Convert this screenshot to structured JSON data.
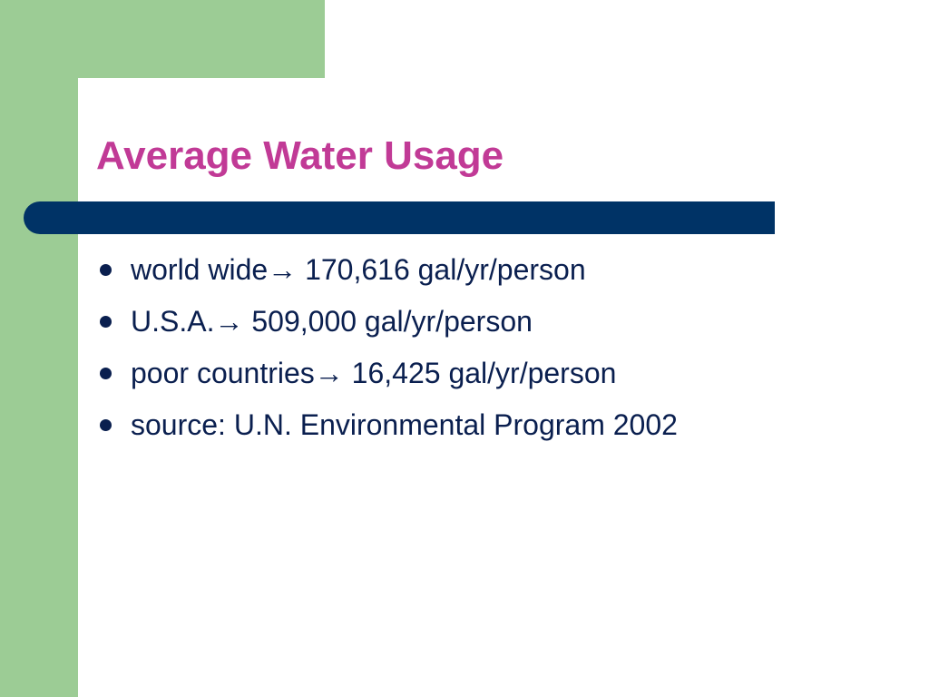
{
  "slide": {
    "title": "Average Water Usage",
    "bullets": [
      "world wide→ 170,616 gal/yr/person",
      "U.S.A.→ 509,000 gal/yr/person",
      "poor countries→ 16,425 gal/yr/person",
      "source: U.N. Environmental Program 2002"
    ]
  },
  "colors": {
    "green_band": "#9ccc95",
    "title_text": "#c13a96",
    "title_bar": "#003366",
    "bullet_text": "#0a1f4f"
  }
}
